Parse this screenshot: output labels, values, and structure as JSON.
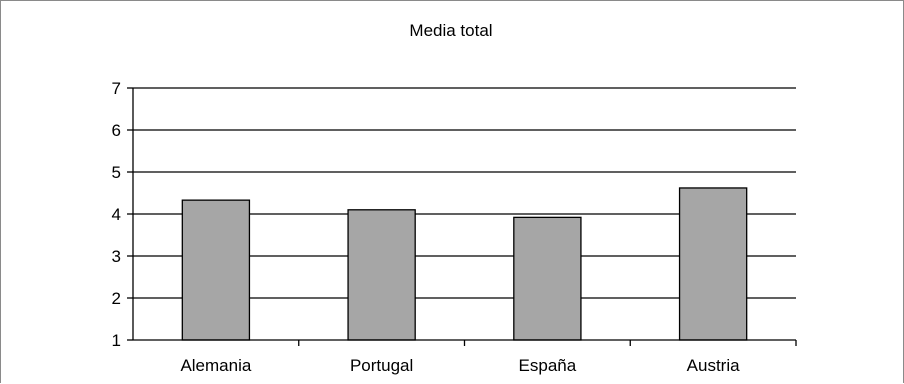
{
  "chart_data": {
    "type": "bar",
    "title": "Media total",
    "xlabel": "",
    "ylabel": "",
    "categories": [
      "Alemania",
      "Portugal",
      "España",
      "Austria"
    ],
    "values": [
      4.33,
      4.1,
      3.92,
      4.62
    ],
    "ylim": [
      1,
      7
    ],
    "yticks": [
      1,
      2,
      3,
      4,
      5,
      6,
      7
    ],
    "grid": true,
    "legend": "none",
    "bar_color": "#a6a6a6",
    "bar_edge_color": "#000000",
    "grid_color": "#000000"
  }
}
